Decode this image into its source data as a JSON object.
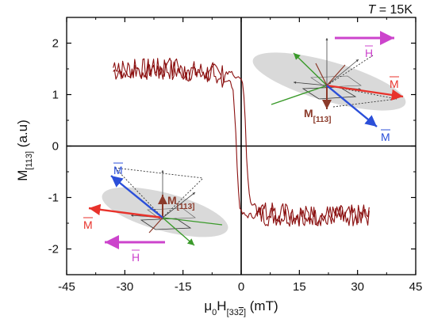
{
  "chart_data": {
    "type": "line",
    "title": "T = 15K",
    "title_parts": {
      "symbol": "T",
      "rest": " = 15K"
    },
    "xlabel": "μ0H[33̅2] (mT)",
    "xlabel_parts": {
      "mu": "μ",
      "sub0": "0",
      "H": "H",
      "subdir": "[33",
      "two": "2",
      "close": "]",
      "unit": " (mT)"
    },
    "ylabel": "M[113] (a.u)",
    "ylabel_parts": {
      "M": "M",
      "sub": "[113]",
      "unit": " (a.u)"
    },
    "xlim": [
      -45,
      45
    ],
    "ylim": [
      -2.5,
      2.5
    ],
    "x_ticks": [
      -45,
      -30,
      -15,
      0,
      15,
      30,
      45
    ],
    "y_ticks": [
      -2,
      -1,
      0,
      1,
      2
    ],
    "x_tick_labels": [
      "-45",
      "-30",
      "-15",
      "0",
      "15",
      "30",
      "45"
    ],
    "y_tick_labels": [
      "-2",
      "-1",
      "0",
      "1",
      "2"
    ],
    "grid": false,
    "line_color": "#8b1010",
    "series": [
      {
        "branch": "descending",
        "x": [
          -33,
          -30,
          -25,
          -20,
          -15,
          -10,
          -7,
          -5,
          -4,
          -3,
          -2.5,
          -2,
          -1.5,
          -1,
          -0.5,
          0,
          1,
          2,
          3,
          5,
          10,
          15,
          20,
          25,
          30,
          33
        ],
        "y": [
          1.45,
          1.5,
          1.5,
          1.5,
          1.45,
          1.45,
          1.4,
          1.35,
          1.3,
          1.25,
          1.2,
          1.0,
          0.5,
          -0.5,
          -1.1,
          -1.3,
          -1.35,
          -1.35,
          -1.35,
          -1.35,
          -1.35,
          -1.35,
          -1.35,
          -1.35,
          -1.35,
          -1.35
        ]
      },
      {
        "branch": "ascending",
        "x": [
          33,
          30,
          25,
          20,
          15,
          10,
          7,
          5,
          4,
          3,
          2.5,
          2,
          1.5,
          1,
          0.5,
          0,
          -1,
          -2,
          -3,
          -5,
          -10,
          -15,
          -20,
          -25,
          -30,
          -33
        ],
        "y": [
          -1.35,
          -1.35,
          -1.35,
          -1.35,
          -1.35,
          -1.3,
          -1.3,
          -1.25,
          -1.2,
          -1.15,
          -1.1,
          -0.9,
          -0.4,
          0.6,
          1.15,
          1.3,
          1.35,
          1.4,
          1.4,
          1.4,
          1.45,
          1.5,
          1.5,
          1.5,
          1.5,
          1.45
        ]
      }
    ],
    "annotations": {
      "upper_right": {
        "H": "H",
        "M": "M",
        "M2": "M",
        "M113_main": "M",
        "M113_sub": "[113]"
      },
      "lower_left": {
        "H": "H",
        "M": "M",
        "M2": "M",
        "M113_main": "M",
        "M113_sub": "[113]"
      }
    },
    "colors": {
      "red": "#e8322b",
      "blue": "#2b4fd9",
      "green": "#3a9a2a",
      "magenta": "#cc44cc",
      "brown": "#8b3a2a",
      "ellipse": "#cfcfcf"
    }
  }
}
